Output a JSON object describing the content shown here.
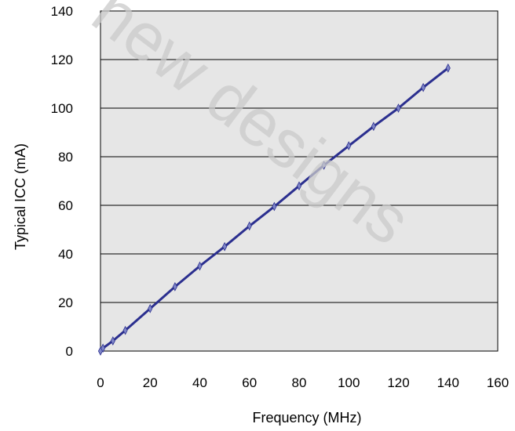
{
  "chart_data": {
    "type": "line",
    "title": "",
    "xlabel": "Frequency (MHz)",
    "ylabel": "Typical ICC (mA)",
    "xlim": [
      0,
      160
    ],
    "ylim": [
      0,
      140
    ],
    "xticks": [
      0,
      20,
      40,
      60,
      80,
      100,
      120,
      140,
      160
    ],
    "yticks": [
      0,
      20,
      40,
      60,
      80,
      100,
      120,
      140
    ],
    "grid": "horizontal",
    "legend": "none",
    "series": [
      {
        "color": "#2b2f8f",
        "marker_color": "#7f86c8",
        "x": [
          0,
          1,
          5,
          10,
          20,
          30,
          40,
          50,
          60,
          70,
          80,
          90,
          100,
          110,
          120,
          130,
          140
        ],
        "y": [
          0,
          1.2,
          4.2,
          8.5,
          17.5,
          26.5,
          35,
          43,
          51.5,
          59.5,
          68,
          76.5,
          84.5,
          92.5,
          100,
          108.5,
          116.5
        ]
      }
    ],
    "watermark": "new designs"
  },
  "style": {
    "plot_bg": "#e6e6e6",
    "grid_color": "#000000",
    "line_color": "#2b2f8f"
  }
}
